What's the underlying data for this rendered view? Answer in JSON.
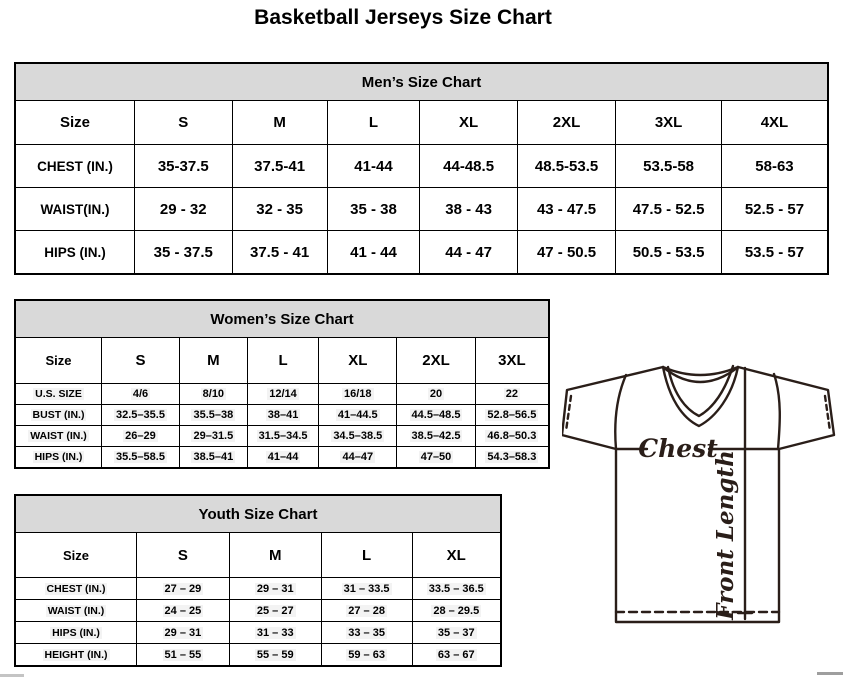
{
  "page_title": "Basketball Jerseys Size Chart",
  "mens_chart": {
    "title": "Men’s Size Chart",
    "header": [
      "Size",
      "S",
      "M",
      "L",
      "XL",
      "2XL",
      "3XL",
      "4XL"
    ],
    "rows": [
      {
        "label": "CHEST (IN.)",
        "values": [
          "35-37.5",
          "37.5-41",
          "41-44",
          "44-48.5",
          "48.5-53.5",
          "53.5-58",
          "58-63"
        ]
      },
      {
        "label": "WAIST(IN.)",
        "values": [
          "29 - 32",
          "32 - 35",
          "35 - 38",
          "38 - 43",
          "43 - 47.5",
          "47.5 - 52.5",
          "52.5 - 57"
        ]
      },
      {
        "label": "HIPS (IN.)",
        "values": [
          "35 - 37.5",
          "37.5 - 41",
          "41 - 44",
          "44 - 47",
          "47 - 50.5",
          "50.5 - 53.5",
          "53.5 - 57"
        ]
      }
    ]
  },
  "womens_chart": {
    "title": "Women’s Size Chart",
    "header": [
      "Size",
      "S",
      "M",
      "L",
      "XL",
      "2XL",
      "3XL"
    ],
    "rows": [
      {
        "label": "U.S. SIZE",
        "values": [
          "4/6",
          "8/10",
          "12/14",
          "16/18",
          "20",
          "22"
        ]
      },
      {
        "label": "BUST (IN.)",
        "values": [
          "32.5–35.5",
          "35.5–38",
          "38–41",
          "41–44.5",
          "44.5–48.5",
          "52.8–56.5"
        ]
      },
      {
        "label": "WAIST (IN.)",
        "values": [
          "26–29",
          "29–31.5",
          "31.5–34.5",
          "34.5–38.5",
          "38.5–42.5",
          "46.8–50.3"
        ]
      },
      {
        "label": "HIPS (IN.)",
        "values": [
          "35.5–58.5",
          "38.5–41",
          "41–44",
          "44–47",
          "47–50",
          "54.3–58.3"
        ]
      }
    ]
  },
  "youth_chart": {
    "title": "Youth Size Chart",
    "header": [
      "Size",
      "S",
      "M",
      "L",
      "XL"
    ],
    "rows": [
      {
        "label": "CHEST (IN.)",
        "values": [
          "27 – 29",
          "29 – 31",
          "31 – 33.5",
          "33.5 – 36.5"
        ]
      },
      {
        "label": "WAIST (IN.)",
        "values": [
          "24 – 25",
          "25 – 27",
          "27 – 28",
          "28 – 29.5"
        ]
      },
      {
        "label": "HIPS (IN.)",
        "values": [
          "29 – 31",
          "31 – 33",
          "33 – 35",
          "35 – 37"
        ]
      },
      {
        "label": "HEIGHT (IN.)",
        "values": [
          "51 – 55",
          "55 – 59",
          "59 – 63",
          "63 – 67"
        ]
      }
    ]
  },
  "diagram": {
    "chest_label": "Chest",
    "front_length_label": "Front Length"
  },
  "colors": {
    "table_title_bg": "#d9d9d9",
    "table_border": "#000000",
    "text": "#000000",
    "jersey_line": "#2a1e19",
    "value_highlight": "#f3f3f3",
    "background": "#ffffff"
  }
}
